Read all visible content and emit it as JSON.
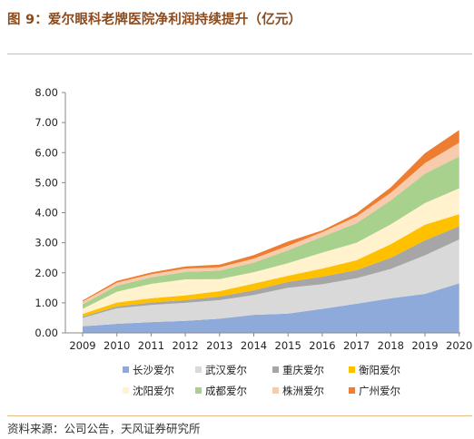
{
  "header": {
    "title": "图 9：爱尔眼科老牌医院净利润持续提升（亿元）"
  },
  "footer": {
    "source": "资料来源：公司公告，天风证券研究所"
  },
  "chart_data": {
    "type": "area",
    "stacked": true,
    "title": "",
    "xlabel": "",
    "ylabel": "",
    "ylim": [
      0,
      8
    ],
    "yticks": [
      "0.00",
      "1.00",
      "2.00",
      "3.00",
      "4.00",
      "5.00",
      "6.00",
      "7.00",
      "8.00"
    ],
    "x": [
      "2009",
      "2010",
      "2011",
      "2012",
      "2013",
      "2014",
      "2015",
      "2016",
      "2017",
      "2018",
      "2019",
      "2020"
    ],
    "legend_position": "bottom",
    "grid": false,
    "series": [
      {
        "name": "长沙爱尔",
        "color": "#8eaadb",
        "values": [
          0.22,
          0.3,
          0.36,
          0.4,
          0.47,
          0.6,
          0.64,
          0.8,
          0.97,
          1.15,
          1.3,
          1.65
        ]
      },
      {
        "name": "武汉爱尔",
        "color": "#d9d9d9",
        "values": [
          0.28,
          0.52,
          0.57,
          0.6,
          0.62,
          0.66,
          0.86,
          0.82,
          0.85,
          0.98,
          1.28,
          1.46
        ]
      },
      {
        "name": "重庆爱尔",
        "color": "#a6a6a6",
        "values": [
          0.04,
          0.06,
          0.08,
          0.09,
          0.12,
          0.16,
          0.2,
          0.25,
          0.27,
          0.37,
          0.5,
          0.44
        ]
      },
      {
        "name": "衡阳爱尔",
        "color": "#ffc000",
        "values": [
          0.09,
          0.13,
          0.14,
          0.16,
          0.18,
          0.22,
          0.2,
          0.27,
          0.33,
          0.45,
          0.52,
          0.4
        ]
      },
      {
        "name": "沈阳爱尔",
        "color": "#fff2cc",
        "values": [
          0.17,
          0.36,
          0.48,
          0.53,
          0.4,
          0.38,
          0.42,
          0.53,
          0.58,
          0.66,
          0.72,
          0.86
        ]
      },
      {
        "name": "成都爱尔",
        "color": "#a9d18e",
        "values": [
          0.15,
          0.2,
          0.22,
          0.25,
          0.28,
          0.32,
          0.43,
          0.53,
          0.65,
          0.8,
          0.98,
          1.06
        ]
      },
      {
        "name": "株洲爱尔",
        "color": "#f8cbad",
        "values": [
          0.09,
          0.1,
          0.1,
          0.11,
          0.11,
          0.13,
          0.15,
          0.15,
          0.22,
          0.25,
          0.35,
          0.46
        ]
      },
      {
        "name": "广州爱尔",
        "color": "#ed7d31",
        "values": [
          0.04,
          0.06,
          0.06,
          0.07,
          0.09,
          0.12,
          0.14,
          0.06,
          0.11,
          0.18,
          0.33,
          0.42
        ]
      }
    ]
  }
}
